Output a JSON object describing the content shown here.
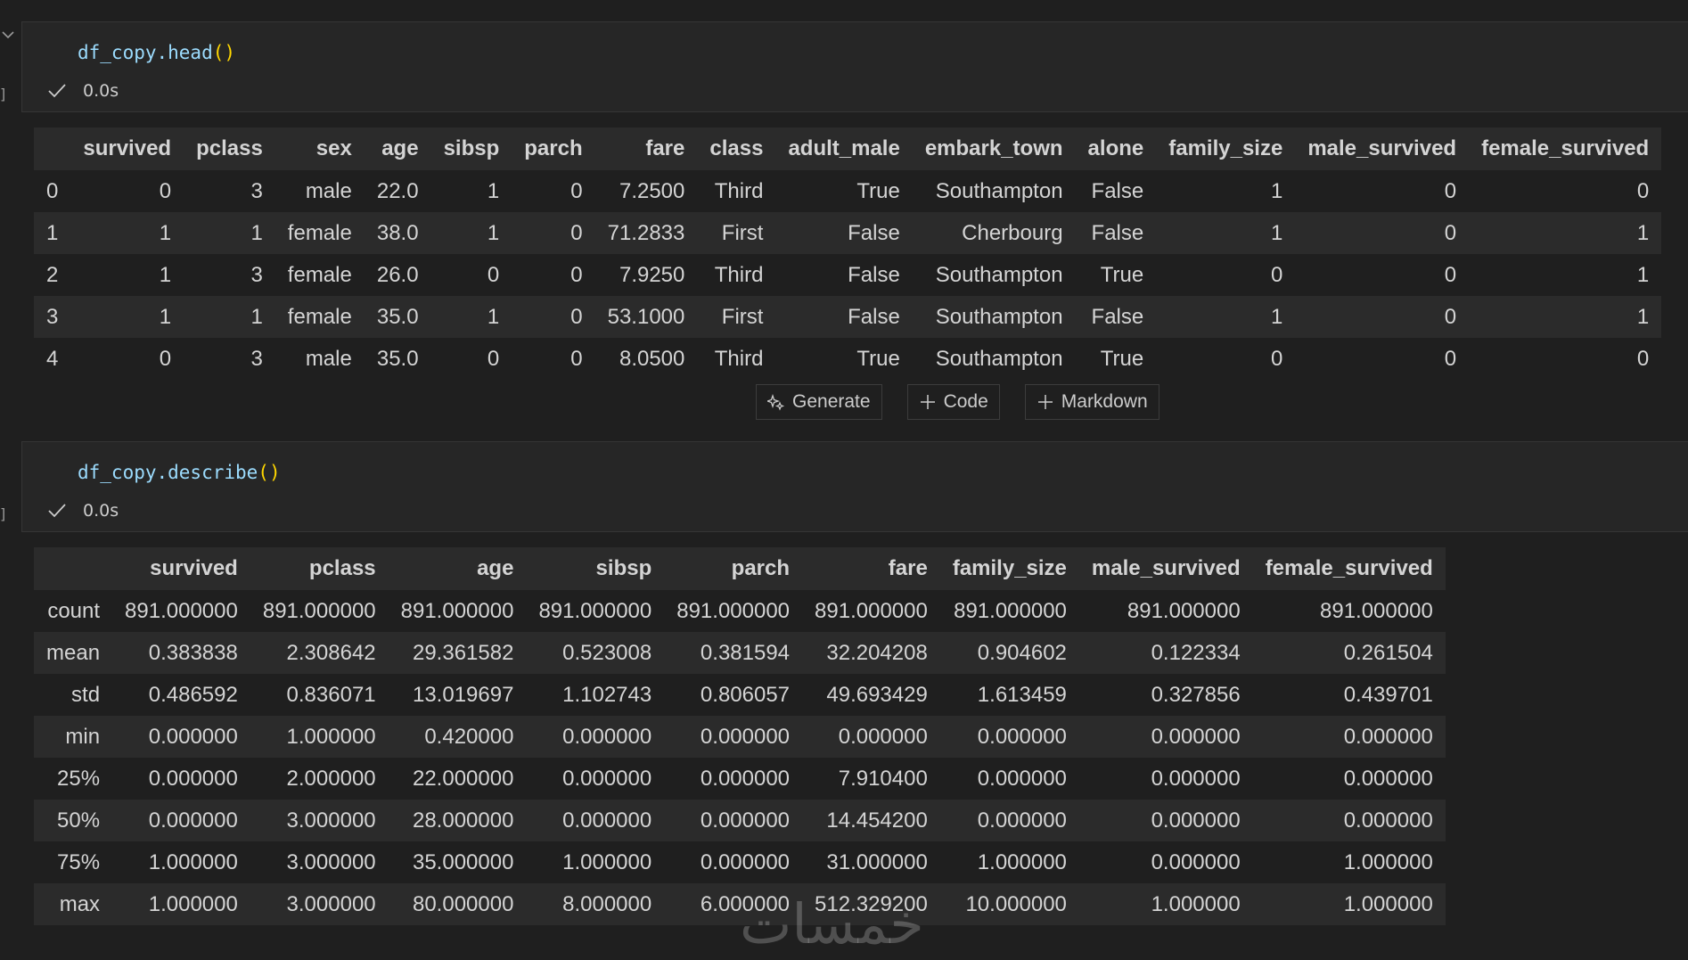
{
  "cells": [
    {
      "code": "df_copy.head",
      "parens": "()",
      "status_time": "0.0s",
      "gutter_label": "]"
    },
    {
      "code": "df_copy.describe",
      "parens": "()",
      "status_time": "0.0s",
      "gutter_label": "]"
    }
  ],
  "head_table": {
    "columns": [
      "",
      "survived",
      "pclass",
      "sex",
      "age",
      "sibsp",
      "parch",
      "fare",
      "class",
      "adult_male",
      "embark_town",
      "alone",
      "family_size",
      "male_survived",
      "female_survived"
    ],
    "rows": [
      [
        "0",
        "0",
        "3",
        "male",
        "22.0",
        "1",
        "0",
        "7.2500",
        "Third",
        "True",
        "Southampton",
        "False",
        "1",
        "0",
        "0"
      ],
      [
        "1",
        "1",
        "1",
        "female",
        "38.0",
        "1",
        "0",
        "71.2833",
        "First",
        "False",
        "Cherbourg",
        "False",
        "1",
        "0",
        "1"
      ],
      [
        "2",
        "1",
        "3",
        "female",
        "26.0",
        "0",
        "0",
        "7.9250",
        "Third",
        "False",
        "Southampton",
        "True",
        "0",
        "0",
        "1"
      ],
      [
        "3",
        "1",
        "1",
        "female",
        "35.0",
        "1",
        "0",
        "53.1000",
        "First",
        "False",
        "Southampton",
        "False",
        "1",
        "0",
        "1"
      ],
      [
        "4",
        "0",
        "3",
        "male",
        "35.0",
        "0",
        "0",
        "8.0500",
        "Third",
        "True",
        "Southampton",
        "True",
        "0",
        "0",
        "0"
      ]
    ]
  },
  "toolbar": {
    "generate_label": "Generate",
    "code_label": "Code",
    "markdown_label": "Markdown"
  },
  "describe_table": {
    "columns": [
      "",
      "survived",
      "pclass",
      "age",
      "sibsp",
      "parch",
      "fare",
      "family_size",
      "male_survived",
      "female_survived"
    ],
    "rows": [
      [
        "count",
        "891.000000",
        "891.000000",
        "891.000000",
        "891.000000",
        "891.000000",
        "891.000000",
        "891.000000",
        "891.000000",
        "891.000000"
      ],
      [
        "mean",
        "0.383838",
        "2.308642",
        "29.361582",
        "0.523008",
        "0.381594",
        "32.204208",
        "0.904602",
        "0.122334",
        "0.261504"
      ],
      [
        "std",
        "0.486592",
        "0.836071",
        "13.019697",
        "1.102743",
        "0.806057",
        "49.693429",
        "1.613459",
        "0.327856",
        "0.439701"
      ],
      [
        "min",
        "0.000000",
        "1.000000",
        "0.420000",
        "0.000000",
        "0.000000",
        "0.000000",
        "0.000000",
        "0.000000",
        "0.000000"
      ],
      [
        "25%",
        "0.000000",
        "2.000000",
        "22.000000",
        "0.000000",
        "0.000000",
        "7.910400",
        "0.000000",
        "0.000000",
        "0.000000"
      ],
      [
        "50%",
        "0.000000",
        "3.000000",
        "28.000000",
        "0.000000",
        "0.000000",
        "14.454200",
        "0.000000",
        "0.000000",
        "0.000000"
      ],
      [
        "75%",
        "1.000000",
        "3.000000",
        "35.000000",
        "1.000000",
        "0.000000",
        "31.000000",
        "1.000000",
        "0.000000",
        "1.000000"
      ],
      [
        "max",
        "1.000000",
        "3.000000",
        "80.000000",
        "8.000000",
        "6.000000",
        "512.329200",
        "10.000000",
        "1.000000",
        "1.000000"
      ]
    ]
  },
  "watermark": "خمسات",
  "colors": {
    "background": "#1f1f1f",
    "cell_input": "#262626",
    "header_row": "#2b2b2b",
    "code_text": "#9cdcfe",
    "paren": "#ffd700"
  }
}
